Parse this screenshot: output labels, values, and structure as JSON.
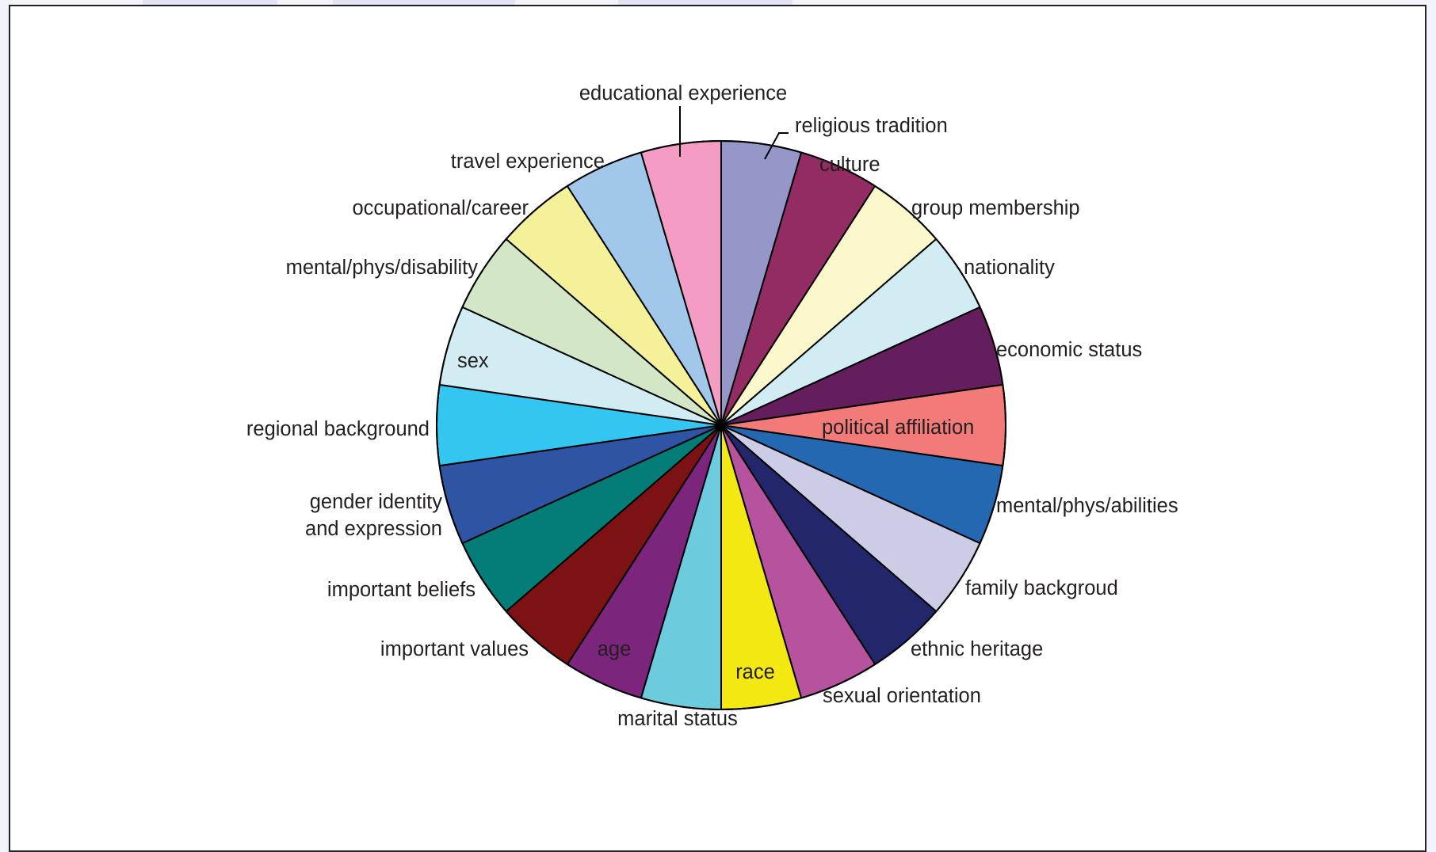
{
  "chart_data": {
    "type": "pie",
    "title": "",
    "start": "12 o'clock",
    "direction": "clockwise",
    "categories": [
      "religious tradition",
      "culture",
      "group membership",
      "nationality",
      "economic status",
      "political affiliation",
      "mental/phys/abilities",
      "family backgroud",
      "ethnic heritage",
      "sexual orientation",
      "race",
      "marital status",
      "age",
      "important values",
      "important beliefs",
      "gender identity and expression",
      "regional background",
      "sex",
      "mental/phys/disability",
      "occupational/career",
      "travel experience",
      "educational experience"
    ],
    "label_lines": [
      [
        "religious tradition"
      ],
      [
        "culture"
      ],
      [
        "group membership"
      ],
      [
        "nationality"
      ],
      [
        "economic status"
      ],
      [
        "political affiliation"
      ],
      [
        "mental/phys/abilities"
      ],
      [
        "family backgroud"
      ],
      [
        "ethnic heritage"
      ],
      [
        "sexual orientation"
      ],
      [
        "race"
      ],
      [
        "marital status"
      ],
      [
        "age"
      ],
      [
        "important values"
      ],
      [
        "important beliefs"
      ],
      [
        "gender identity",
        "and expression"
      ],
      [
        "regional background"
      ],
      [
        "sex"
      ],
      [
        "mental/phys/disability"
      ],
      [
        "occupational/career"
      ],
      [
        "travel experience"
      ],
      [
        "educational experience"
      ]
    ],
    "values": [
      1,
      1,
      1,
      1,
      1,
      1,
      1,
      1,
      1,
      1,
      1,
      1,
      1,
      1,
      1,
      1,
      1,
      1,
      1,
      1,
      1,
      1
    ],
    "colors": [
      "#9497c8",
      "#922c63",
      "#fbf8cb",
      "#d1ecf3",
      "#641e5e",
      "#f27b7a",
      "#2468b2",
      "#cdcce7",
      "#24266c",
      "#b7529f",
      "#f4e812",
      "#6ccbdc",
      "#7b257d",
      "#7c1214",
      "#047d79",
      "#2e54a3",
      "#33c6f1",
      "#d1ecf3",
      "#d3e7c6",
      "#f5f19a",
      "#a1c8ea",
      "#f49cc4"
    ],
    "legend": "none",
    "labels": "outside with leader lines; some inside slices"
  }
}
